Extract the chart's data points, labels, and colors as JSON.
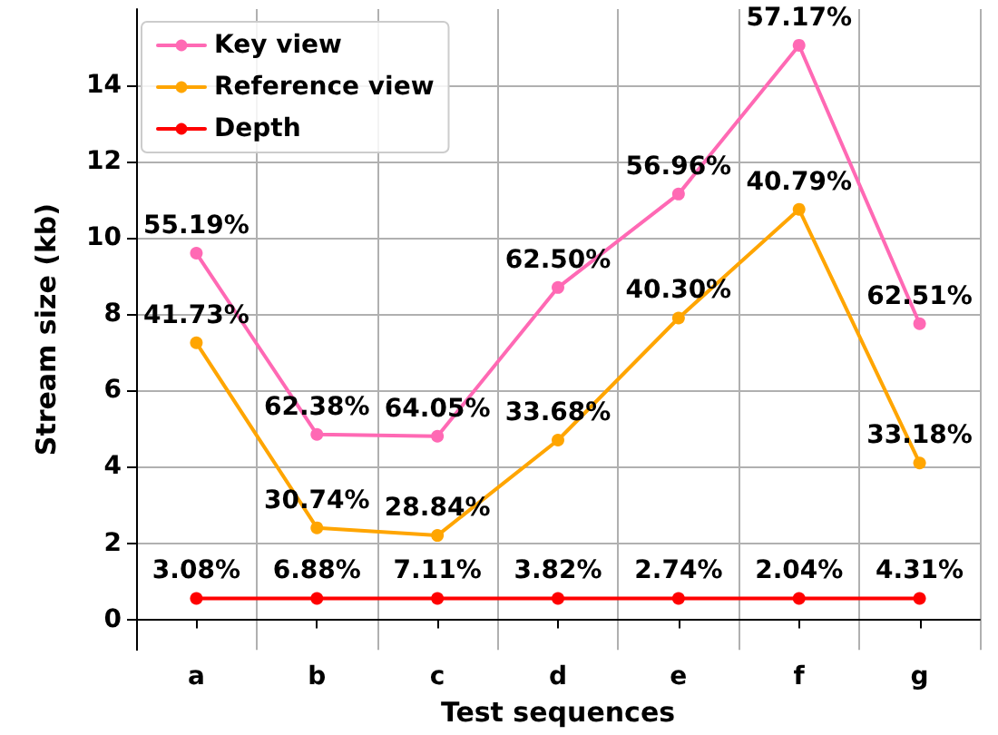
{
  "chart_data": {
    "type": "line",
    "xlabel": "Test sequences",
    "ylabel": "Stream size (kb)",
    "categories": [
      "a",
      "b",
      "c",
      "d",
      "e",
      "f",
      "g"
    ],
    "series": [
      {
        "name": "Key view",
        "color": "#ff69b4",
        "values": [
          9.6,
          4.85,
          4.8,
          8.7,
          11.15,
          15.05,
          7.75
        ]
      },
      {
        "name": "Reference view",
        "color": "#ffa500",
        "values": [
          7.25,
          2.4,
          2.2,
          4.7,
          7.9,
          10.75,
          4.1
        ]
      },
      {
        "name": "Depth",
        "color": "#ff0000",
        "values": [
          0.55,
          0.55,
          0.55,
          0.55,
          0.55,
          0.55,
          0.55
        ]
      }
    ],
    "annotations": [
      {
        "text": "55.19%",
        "x": "a",
        "y": 9.6
      },
      {
        "text": "62.38%",
        "x": "b",
        "y": 4.85
      },
      {
        "text": "64.05%",
        "x": "c",
        "y": 4.8
      },
      {
        "text": "62.50%",
        "x": "d",
        "y": 8.7
      },
      {
        "text": "56.96%",
        "x": "e",
        "y": 11.15
      },
      {
        "text": "57.17%",
        "x": "f",
        "y": 15.05
      },
      {
        "text": "62.51%",
        "x": "g",
        "y": 7.75
      },
      {
        "text": "41.73%",
        "x": "a",
        "y": 7.25
      },
      {
        "text": "30.74%",
        "x": "b",
        "y": 2.4
      },
      {
        "text": "28.84%",
        "x": "c",
        "y": 2.2
      },
      {
        "text": "33.68%",
        "x": "d",
        "y": 4.7
      },
      {
        "text": "40.30%",
        "x": "e",
        "y": 7.9
      },
      {
        "text": "40.79%",
        "x": "f",
        "y": 10.75
      },
      {
        "text": "33.18%",
        "x": "g",
        "y": 4.1
      },
      {
        "text": "3.08%",
        "x": "a",
        "y": 0.55
      },
      {
        "text": "6.88%",
        "x": "b",
        "y": 0.55
      },
      {
        "text": "7.11%",
        "x": "c",
        "y": 0.55
      },
      {
        "text": "3.82%",
        "x": "d",
        "y": 0.55
      },
      {
        "text": "2.74%",
        "x": "e",
        "y": 0.55
      },
      {
        "text": "2.04%",
        "x": "f",
        "y": 0.55
      },
      {
        "text": "4.31%",
        "x": "g",
        "y": 0.55
      }
    ],
    "ylim": [
      -0.8,
      16
    ],
    "yticks": [
      0,
      2,
      4,
      6,
      8,
      10,
      12,
      14
    ],
    "grid": true,
    "legend": "top left",
    "marker": "circle",
    "line_style": "solid"
  }
}
